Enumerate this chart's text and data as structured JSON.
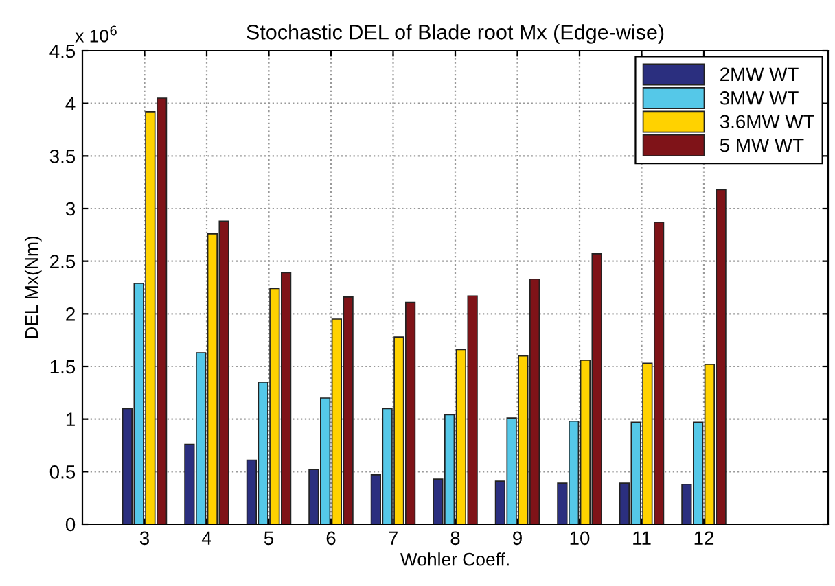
{
  "chart_data": {
    "type": "bar",
    "title": "Stochastic DEL of Blade root Mx (Edge-wise)",
    "xlabel": "Wohler Coeff.",
    "ylabel": "DEL Mx(Nm)",
    "annotations": [
      "x 10$^{6}$"
    ],
    "x": [
      3,
      4,
      5,
      6,
      7,
      8,
      9,
      10,
      11,
      12
    ],
    "xlim": [
      2,
      14
    ],
    "xticks": [
      3,
      4,
      5,
      6,
      7,
      8,
      9,
      10,
      11,
      12
    ],
    "ylim": [
      0,
      4.5
    ],
    "yticks": [
      0,
      0.5,
      1,
      1.5,
      2,
      2.5,
      3,
      3.5,
      4,
      4.5
    ],
    "grid": true,
    "legend": "top right",
    "series": [
      {
        "name": "2MW WT",
        "color": "#2b2f7f",
        "values": [
          1.1,
          0.76,
          0.61,
          0.52,
          0.47,
          0.43,
          0.41,
          0.39,
          0.39,
          0.38
        ]
      },
      {
        "name": "3MW WT",
        "color": "#55c8e8",
        "values": [
          2.29,
          1.63,
          1.35,
          1.2,
          1.1,
          1.04,
          1.01,
          0.98,
          0.97,
          0.97
        ]
      },
      {
        "name": "3.6MW WT",
        "color": "#ffd200",
        "values": [
          3.92,
          2.76,
          2.24,
          1.95,
          1.78,
          1.66,
          1.6,
          1.56,
          1.53,
          1.52
        ]
      },
      {
        "name": "5 MW WT",
        "color": "#7f1318",
        "values": [
          4.05,
          2.88,
          2.39,
          2.16,
          2.11,
          2.17,
          2.33,
          2.57,
          2.87,
          3.18
        ]
      }
    ]
  }
}
